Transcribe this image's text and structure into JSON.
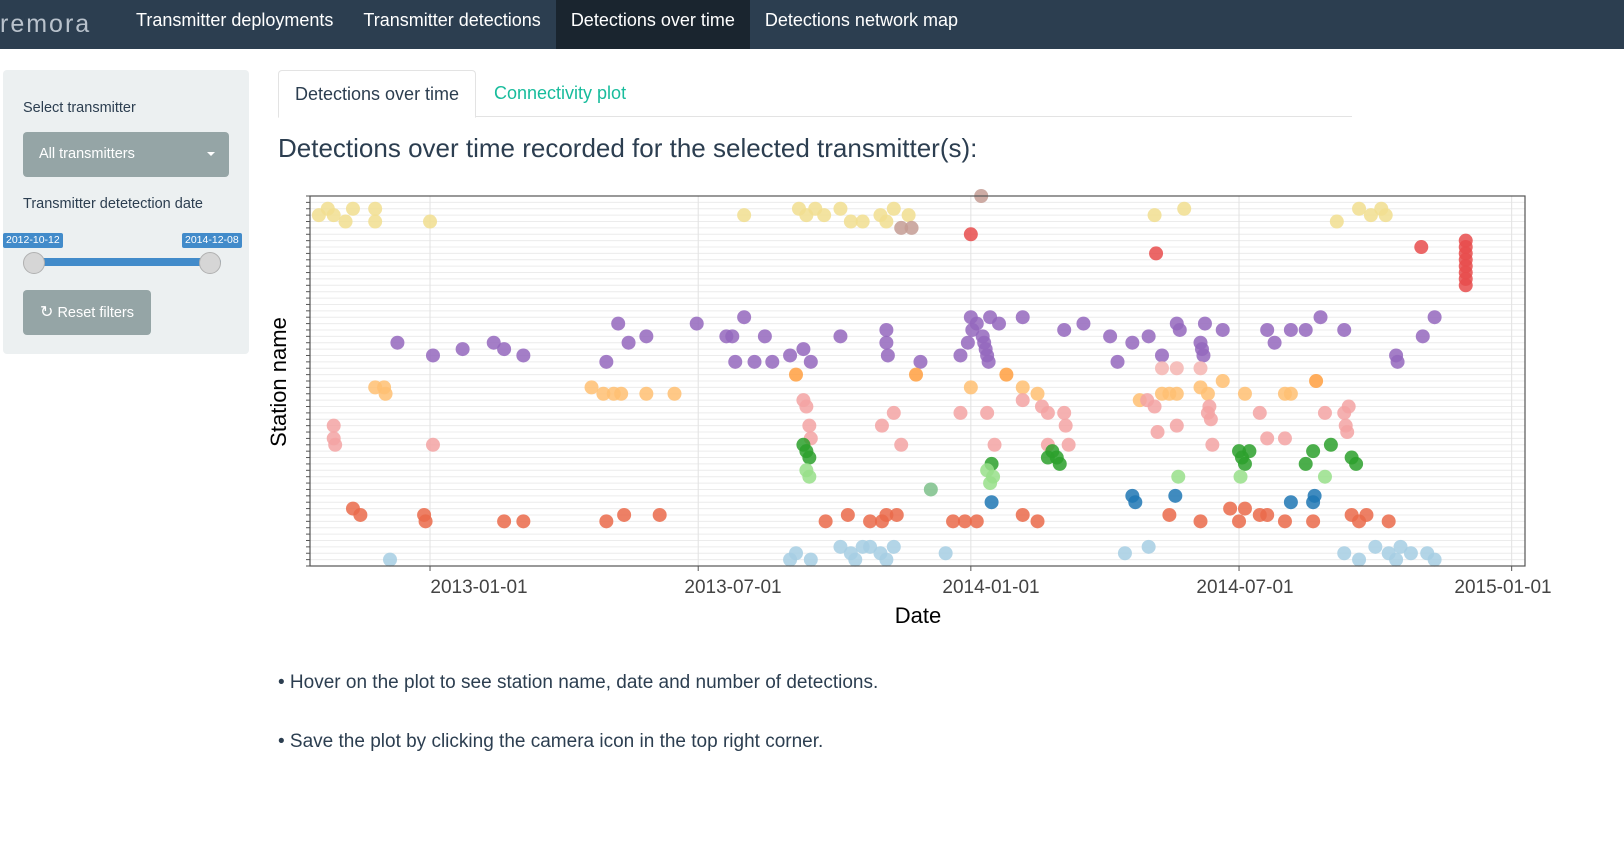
{
  "navbar": {
    "brand": "remora",
    "items": [
      {
        "label": "Transmitter deployments",
        "active": false
      },
      {
        "label": "Transmitter detections",
        "active": false
      },
      {
        "label": "Detections over time",
        "active": true
      },
      {
        "label": "Detections network map",
        "active": false
      }
    ]
  },
  "sidebar": {
    "transmitter_label": "Select transmitter",
    "transmitter_value": "All transmitters",
    "date_label": "Transmitter detetection date",
    "date_start": "2012-10-12",
    "date_end": "2014-12-08",
    "reset_label": "Reset filters",
    "reset_icon": "refresh-icon"
  },
  "tabs": [
    {
      "label": "Detections over time",
      "active": true
    },
    {
      "label": "Connectivity plot",
      "active": false
    }
  ],
  "heading": "Detections over time recorded for the selected transmitter(s):",
  "notes": [
    "• Hover on the plot to see station name, date and number of detections.",
    "• Save the plot by clicking the camera icon in the top right corner."
  ],
  "colors": {
    "navbar": "#2c3e50",
    "accent": "#18bc9c",
    "slider": "#428bca",
    "button": "#95a5a6"
  },
  "chart_data": {
    "type": "scatter",
    "title": "",
    "xlabel": "Date",
    "ylabel": "Station name",
    "x_ticks": [
      "2013-01-01",
      "2013-07-01",
      "2014-01-01",
      "2014-07-01",
      "2015-01-01"
    ],
    "xlim": [
      "2012-10-12",
      "2015-01-10"
    ],
    "ylim": [
      0,
      58
    ],
    "y_tick_labels_visible": false,
    "grid": true,
    "legend": "none",
    "series": [
      {
        "color": "#f1de8f",
        "points": [
          [
            "2012-10-18",
            55
          ],
          [
            "2012-10-24",
            56
          ],
          [
            "2012-10-28",
            55
          ],
          [
            "2012-11-05",
            54
          ],
          [
            "2012-11-10",
            56
          ],
          [
            "2012-11-25",
            56
          ],
          [
            "2012-11-25",
            54
          ],
          [
            "2013-01-01",
            54
          ],
          [
            "2013-08-01",
            55
          ],
          [
            "2013-09-07",
            56
          ],
          [
            "2013-09-12",
            55
          ],
          [
            "2013-09-18",
            56
          ],
          [
            "2013-09-24",
            55
          ],
          [
            "2013-10-05",
            56
          ],
          [
            "2013-10-12",
            54
          ],
          [
            "2013-10-20",
            54
          ],
          [
            "2013-11-01",
            55
          ],
          [
            "2013-11-05",
            54
          ],
          [
            "2013-11-10",
            56
          ],
          [
            "2013-11-20",
            55
          ],
          [
            "2014-05-05",
            55
          ],
          [
            "2014-05-25",
            56
          ],
          [
            "2014-09-05",
            54
          ],
          [
            "2014-09-20",
            56
          ],
          [
            "2014-09-28",
            55
          ],
          [
            "2014-10-05",
            56
          ],
          [
            "2014-10-08",
            55
          ]
        ]
      },
      {
        "color": "#c49c94",
        "points": [
          [
            "2013-11-15",
            53
          ],
          [
            "2013-11-22",
            53
          ],
          [
            "2014-01-08",
            58
          ]
        ]
      },
      {
        "color": "#e84c4c",
        "points": [
          [
            "2014-01-01",
            52
          ],
          [
            "2014-05-06",
            49
          ],
          [
            "2014-11-01",
            50
          ],
          [
            "2014-12-01",
            51
          ],
          [
            "2014-12-01",
            50
          ],
          [
            "2014-12-01",
            49
          ],
          [
            "2014-12-01",
            48
          ],
          [
            "2014-12-01",
            47
          ],
          [
            "2014-12-01",
            46
          ],
          [
            "2014-12-01",
            45
          ],
          [
            "2014-12-01",
            44
          ]
        ]
      },
      {
        "color": "#9467bd",
        "points": [
          [
            "2012-12-10",
            35
          ],
          [
            "2013-01-03",
            33
          ],
          [
            "2013-01-23",
            34
          ],
          [
            "2013-02-13",
            35
          ],
          [
            "2013-02-20",
            34
          ],
          [
            "2013-03-05",
            33
          ],
          [
            "2013-04-30",
            32
          ],
          [
            "2013-05-08",
            38
          ],
          [
            "2013-05-15",
            35
          ],
          [
            "2013-05-27",
            36
          ],
          [
            "2013-06-30",
            38
          ],
          [
            "2013-07-20",
            36
          ],
          [
            "2013-07-24",
            36
          ],
          [
            "2013-07-26",
            32
          ],
          [
            "2013-08-01",
            39
          ],
          [
            "2013-08-08",
            32
          ],
          [
            "2013-08-15",
            36
          ],
          [
            "2013-08-20",
            32
          ],
          [
            "2013-09-01",
            33
          ],
          [
            "2013-09-10",
            34
          ],
          [
            "2013-09-15",
            32
          ],
          [
            "2013-10-05",
            36
          ],
          [
            "2013-11-05",
            37
          ],
          [
            "2013-11-05",
            35
          ],
          [
            "2013-11-06",
            33
          ],
          [
            "2013-11-28",
            32
          ],
          [
            "2013-12-25",
            33
          ],
          [
            "2013-12-30",
            35
          ],
          [
            "2014-01-01",
            39
          ],
          [
            "2014-01-02",
            37
          ],
          [
            "2014-01-05",
            38
          ],
          [
            "2014-01-09",
            36
          ],
          [
            "2014-01-10",
            35
          ],
          [
            "2014-01-11",
            34
          ],
          [
            "2014-01-12",
            33
          ],
          [
            "2014-01-13",
            32
          ],
          [
            "2014-01-14",
            39
          ],
          [
            "2014-01-20",
            38
          ],
          [
            "2014-02-05",
            39
          ],
          [
            "2014-03-05",
            37
          ],
          [
            "2014-03-18",
            38
          ],
          [
            "2014-04-05",
            36
          ],
          [
            "2014-04-10",
            32
          ],
          [
            "2014-04-20",
            35
          ],
          [
            "2014-05-01",
            36
          ],
          [
            "2014-05-10",
            33
          ],
          [
            "2014-05-20",
            38
          ],
          [
            "2014-05-22",
            37
          ],
          [
            "2014-06-05",
            35
          ],
          [
            "2014-06-06",
            34
          ],
          [
            "2014-06-07",
            33
          ],
          [
            "2014-06-08",
            38
          ],
          [
            "2014-06-20",
            37
          ],
          [
            "2014-07-20",
            37
          ],
          [
            "2014-07-25",
            35
          ],
          [
            "2014-08-05",
            37
          ],
          [
            "2014-08-15",
            37
          ],
          [
            "2014-08-25",
            39
          ],
          [
            "2014-09-10",
            37
          ],
          [
            "2014-10-15",
            33
          ],
          [
            "2014-10-16",
            32
          ],
          [
            "2014-11-02",
            36
          ],
          [
            "2014-11-10",
            39
          ]
        ]
      },
      {
        "color": "#f4b5b1",
        "points": [
          [
            "2014-05-10",
            31
          ],
          [
            "2014-05-20",
            31
          ],
          [
            "2014-06-05",
            31
          ]
        ]
      },
      {
        "color": "#ff9f3f",
        "points": [
          [
            "2013-09-05",
            30
          ],
          [
            "2013-11-25",
            30
          ],
          [
            "2014-01-25",
            30
          ],
          [
            "2014-08-22",
            29
          ]
        ]
      },
      {
        "color": "#ffbf72",
        "points": [
          [
            "2012-11-25",
            28
          ],
          [
            "2012-12-01",
            28
          ],
          [
            "2012-12-02",
            27
          ],
          [
            "2013-04-20",
            28
          ],
          [
            "2013-04-28",
            27
          ],
          [
            "2013-05-05",
            27
          ],
          [
            "2013-05-10",
            27
          ],
          [
            "2013-05-27",
            27
          ],
          [
            "2013-06-15",
            27
          ],
          [
            "2014-01-01",
            28
          ],
          [
            "2014-02-05",
            28
          ],
          [
            "2014-02-15",
            27
          ],
          [
            "2014-04-25",
            26
          ],
          [
            "2014-05-10",
            27
          ],
          [
            "2014-05-15",
            27
          ],
          [
            "2014-05-20",
            27
          ],
          [
            "2014-06-05",
            28
          ],
          [
            "2014-06-10",
            27
          ],
          [
            "2014-06-20",
            29
          ],
          [
            "2014-07-05",
            27
          ],
          [
            "2014-08-01",
            27
          ],
          [
            "2014-08-05",
            27
          ]
        ]
      },
      {
        "color": "#f3a3a3",
        "points": [
          [
            "2012-10-28",
            22
          ],
          [
            "2012-10-28",
            20
          ],
          [
            "2012-10-29",
            19
          ],
          [
            "2013-01-03",
            19
          ],
          [
            "2013-09-10",
            26
          ],
          [
            "2013-09-12",
            25
          ],
          [
            "2013-09-15",
            20
          ],
          [
            "2013-09-14",
            22
          ],
          [
            "2013-11-02",
            22
          ],
          [
            "2013-11-10",
            24
          ],
          [
            "2013-11-15",
            19
          ],
          [
            "2013-12-25",
            24
          ],
          [
            "2014-01-12",
            24
          ],
          [
            "2014-01-17",
            19
          ],
          [
            "2014-02-05",
            26
          ],
          [
            "2014-02-18",
            25
          ],
          [
            "2014-02-22",
            24
          ],
          [
            "2014-02-22",
            19
          ],
          [
            "2014-03-05",
            24
          ],
          [
            "2014-03-06",
            22
          ],
          [
            "2014-03-08",
            19
          ],
          [
            "2014-04-30",
            26
          ],
          [
            "2014-05-05",
            25
          ],
          [
            "2014-05-07",
            21
          ],
          [
            "2014-05-20",
            22
          ],
          [
            "2014-06-10",
            24
          ],
          [
            "2014-06-11",
            25
          ],
          [
            "2014-06-12",
            23
          ],
          [
            "2014-06-13",
            19
          ],
          [
            "2014-07-15",
            24
          ],
          [
            "2014-07-20",
            20
          ],
          [
            "2014-08-01",
            20
          ],
          [
            "2014-08-28",
            24
          ],
          [
            "2014-09-10",
            24
          ],
          [
            "2014-09-11",
            22
          ],
          [
            "2014-09-12",
            21
          ],
          [
            "2014-09-13",
            25
          ]
        ]
      },
      {
        "color": "#2ca02c",
        "points": [
          [
            "2013-09-10",
            19
          ],
          [
            "2013-09-12",
            18
          ],
          [
            "2013-09-14",
            17
          ],
          [
            "2014-01-15",
            16
          ],
          [
            "2014-02-22",
            17
          ],
          [
            "2014-02-25",
            18
          ],
          [
            "2014-02-28",
            17
          ],
          [
            "2014-03-02",
            16
          ],
          [
            "2014-07-01",
            18
          ],
          [
            "2014-07-03",
            17
          ],
          [
            "2014-07-05",
            16
          ],
          [
            "2014-07-08",
            18
          ],
          [
            "2014-08-15",
            16
          ],
          [
            "2014-08-20",
            18
          ],
          [
            "2014-09-01",
            19
          ],
          [
            "2014-09-15",
            17
          ],
          [
            "2014-09-18",
            16
          ]
        ]
      },
      {
        "color": "#98df8a",
        "points": [
          [
            "2013-09-12",
            15
          ],
          [
            "2013-09-14",
            14
          ],
          [
            "2014-01-12",
            15
          ],
          [
            "2014-01-14",
            13
          ],
          [
            "2014-01-16",
            14
          ],
          [
            "2014-05-21",
            14
          ],
          [
            "2014-07-02",
            14
          ],
          [
            "2014-08-28",
            14
          ]
        ]
      },
      {
        "color": "#7cc08a",
        "points": [
          [
            "2013-12-05",
            12
          ]
        ]
      },
      {
        "color": "#1f77b4",
        "points": [
          [
            "2014-01-15",
            10
          ],
          [
            "2014-04-20",
            11
          ],
          [
            "2014-04-22",
            10
          ],
          [
            "2014-05-19",
            11
          ],
          [
            "2014-08-05",
            10
          ],
          [
            "2014-08-20",
            10
          ],
          [
            "2014-08-21",
            11
          ]
        ]
      },
      {
        "color": "#ea6a4a",
        "points": [
          [
            "2012-11-10",
            9
          ],
          [
            "2012-11-15",
            8
          ],
          [
            "2012-12-28",
            8
          ],
          [
            "2012-12-29",
            7
          ],
          [
            "2013-02-20",
            7
          ],
          [
            "2013-03-05",
            7
          ],
          [
            "2013-04-30",
            7
          ],
          [
            "2013-05-12",
            8
          ],
          [
            "2013-06-05",
            8
          ],
          [
            "2013-09-25",
            7
          ],
          [
            "2013-10-10",
            8
          ],
          [
            "2013-10-25",
            7
          ],
          [
            "2013-11-02",
            7
          ],
          [
            "2013-11-05",
            8
          ],
          [
            "2013-11-12",
            8
          ],
          [
            "2013-12-20",
            7
          ],
          [
            "2013-12-28",
            7
          ],
          [
            "2014-01-05",
            7
          ],
          [
            "2014-02-05",
            8
          ],
          [
            "2014-02-15",
            7
          ],
          [
            "2014-05-15",
            8
          ],
          [
            "2014-06-05",
            7
          ],
          [
            "2014-06-25",
            9
          ],
          [
            "2014-07-01",
            7
          ],
          [
            "2014-07-05",
            9
          ],
          [
            "2014-07-15",
            8
          ],
          [
            "2014-07-20",
            8
          ],
          [
            "2014-08-01",
            7
          ],
          [
            "2014-08-20",
            7
          ],
          [
            "2014-09-15",
            8
          ],
          [
            "2014-09-20",
            7
          ],
          [
            "2014-09-25",
            8
          ],
          [
            "2014-10-10",
            7
          ]
        ]
      },
      {
        "color": "#a6cee3",
        "points": [
          [
            "2012-12-05",
            1
          ],
          [
            "2013-09-01",
            1
          ],
          [
            "2013-09-05",
            2
          ],
          [
            "2013-09-15",
            1
          ],
          [
            "2013-10-05",
            3
          ],
          [
            "2013-10-12",
            2
          ],
          [
            "2013-10-15",
            1
          ],
          [
            "2013-10-20",
            3
          ],
          [
            "2013-10-25",
            3
          ],
          [
            "2013-11-01",
            2
          ],
          [
            "2013-11-05",
            1
          ],
          [
            "2013-11-10",
            3
          ],
          [
            "2013-12-15",
            2
          ],
          [
            "2014-04-15",
            2
          ],
          [
            "2014-05-01",
            3
          ],
          [
            "2014-09-10",
            2
          ],
          [
            "2014-09-20",
            1
          ],
          [
            "2014-10-01",
            3
          ],
          [
            "2014-10-10",
            2
          ],
          [
            "2014-10-15",
            1
          ],
          [
            "2014-10-18",
            3
          ],
          [
            "2014-10-25",
            2
          ],
          [
            "2014-11-05",
            2
          ],
          [
            "2014-11-10",
            1
          ]
        ]
      }
    ]
  }
}
